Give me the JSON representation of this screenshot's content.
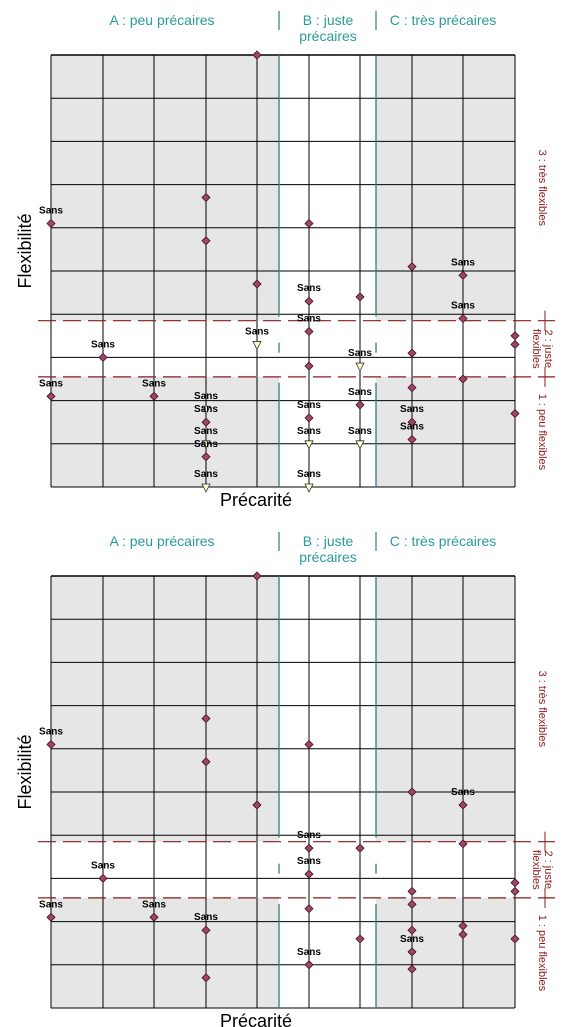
{
  "chart_data": [
    {
      "type": "scatter",
      "title": "",
      "xlabel": "Précarité",
      "ylabel": "Flexibilité",
      "x_zones": [
        "A : peu précaires",
        "B : juste\nprécaires",
        "C : très précaires"
      ],
      "y_zones": [
        "3 : très flexibles",
        "2 : juste\nflexibles",
        "1 : peu flexibles"
      ],
      "grid": true,
      "points": [
        {
          "x": 0,
          "y": 6.1,
          "label": "Sans",
          "marker": "diamond"
        },
        {
          "x": 1,
          "y": 3.0,
          "label": "Sans",
          "marker": "diamond"
        },
        {
          "x": 0,
          "y": 2.1,
          "label": "Sans",
          "marker": "diamond"
        },
        {
          "x": 2,
          "y": 2.1,
          "label": "Sans",
          "marker": "diamond"
        },
        {
          "x": 3,
          "y": 6.7,
          "label": "",
          "marker": "diamond"
        },
        {
          "x": 3,
          "y": 5.7,
          "label": "",
          "marker": "diamond"
        },
        {
          "x": 3,
          "y": 1.8,
          "label": "Sans",
          "marker": "triangle"
        },
        {
          "x": 3,
          "y": 1.5,
          "label": "Sans",
          "marker": "diamond"
        },
        {
          "x": 3,
          "y": 1.0,
          "label": "Sans",
          "marker": "triangle"
        },
        {
          "x": 3,
          "y": 0.7,
          "label": "Sans",
          "marker": "diamond"
        },
        {
          "x": 3,
          "y": 0.0,
          "label": "Sans",
          "marker": "triangle"
        },
        {
          "x": 4,
          "y": 10.0,
          "label": "",
          "marker": "diamond"
        },
        {
          "x": 4,
          "y": 4.7,
          "label": "",
          "marker": "diamond"
        },
        {
          "x": 4,
          "y": 3.3,
          "label": "Sans",
          "marker": "triangle"
        },
        {
          "x": 5,
          "y": 6.1,
          "label": "",
          "marker": "diamond"
        },
        {
          "x": 5,
          "y": 4.3,
          "label": "Sans",
          "marker": "diamond"
        },
        {
          "x": 5,
          "y": 3.6,
          "label": "Sans",
          "marker": "diamond"
        },
        {
          "x": 5,
          "y": 2.8,
          "label": "",
          "marker": "diamond"
        },
        {
          "x": 5,
          "y": 1.6,
          "label": "Sans",
          "marker": "diamond"
        },
        {
          "x": 5,
          "y": 1.0,
          "label": "Sans",
          "marker": "triangle"
        },
        {
          "x": 5,
          "y": 0.0,
          "label": "Sans",
          "marker": "triangle"
        },
        {
          "x": 6,
          "y": 4.4,
          "label": "",
          "marker": "diamond"
        },
        {
          "x": 6,
          "y": 2.8,
          "label": "Sans",
          "marker": "triangle"
        },
        {
          "x": 6,
          "y": 1.9,
          "label": "Sans",
          "marker": "diamond"
        },
        {
          "x": 6,
          "y": 1.0,
          "label": "Sans",
          "marker": "triangle"
        },
        {
          "x": 7,
          "y": 5.1,
          "label": "",
          "marker": "diamond"
        },
        {
          "x": 7,
          "y": 3.1,
          "label": "",
          "marker": "diamond"
        },
        {
          "x": 7,
          "y": 2.3,
          "label": "",
          "marker": "diamond"
        },
        {
          "x": 7,
          "y": 1.5,
          "label": "Sans",
          "marker": "diamond"
        },
        {
          "x": 7,
          "y": 1.1,
          "label": "Sans",
          "marker": "diamond"
        },
        {
          "x": 8,
          "y": 4.9,
          "label": "Sans",
          "marker": "diamond"
        },
        {
          "x": 8,
          "y": 3.9,
          "label": "Sans",
          "marker": "diamond"
        },
        {
          "x": 8,
          "y": 2.5,
          "label": "",
          "marker": "diamond"
        },
        {
          "x": 9,
          "y": 3.5,
          "label": "",
          "marker": "diamond"
        },
        {
          "x": 9,
          "y": 3.3,
          "label": "",
          "marker": "diamond"
        },
        {
          "x": 9,
          "y": 1.7,
          "label": "",
          "marker": "diamond"
        }
      ]
    },
    {
      "type": "scatter",
      "title": "",
      "xlabel": "Précarité",
      "ylabel": "Flexibilité",
      "x_zones": [
        "A : peu précaires",
        "B : juste\nprécaires",
        "C : très précaires"
      ],
      "y_zones": [
        "3 : très flexibles",
        "2 : juste\nflexibles",
        "1 : peu flexibles"
      ],
      "grid": true,
      "points": [
        {
          "x": 0,
          "y": 6.1,
          "label": "Sans",
          "marker": "diamond"
        },
        {
          "x": 1,
          "y": 3.0,
          "label": "Sans",
          "marker": "diamond"
        },
        {
          "x": 0,
          "y": 2.1,
          "label": "Sans",
          "marker": "diamond"
        },
        {
          "x": 2,
          "y": 2.1,
          "label": "Sans",
          "marker": "diamond"
        },
        {
          "x": 3,
          "y": 6.7,
          "label": "",
          "marker": "diamond"
        },
        {
          "x": 3,
          "y": 5.7,
          "label": "",
          "marker": "diamond"
        },
        {
          "x": 3,
          "y": 1.8,
          "label": "Sans",
          "marker": "diamond"
        },
        {
          "x": 3,
          "y": 0.7,
          "label": "",
          "marker": "diamond"
        },
        {
          "x": 4,
          "y": 10.0,
          "label": "",
          "marker": "diamond"
        },
        {
          "x": 4,
          "y": 4.7,
          "label": "",
          "marker": "diamond"
        },
        {
          "x": 5,
          "y": 6.1,
          "label": "",
          "marker": "diamond"
        },
        {
          "x": 5,
          "y": 3.7,
          "label": "Sans",
          "marker": "diamond"
        },
        {
          "x": 5,
          "y": 3.1,
          "label": "Sans",
          "marker": "diamond"
        },
        {
          "x": 5,
          "y": 2.3,
          "label": "",
          "marker": "diamond"
        },
        {
          "x": 5,
          "y": 1.0,
          "label": "Sans",
          "marker": "diamond"
        },
        {
          "x": 6,
          "y": 3.7,
          "label": "",
          "marker": "diamond"
        },
        {
          "x": 6,
          "y": 1.6,
          "label": "",
          "marker": "diamond"
        },
        {
          "x": 7,
          "y": 5.0,
          "label": "",
          "marker": "diamond"
        },
        {
          "x": 7,
          "y": 2.7,
          "label": "",
          "marker": "diamond"
        },
        {
          "x": 7,
          "y": 2.4,
          "label": "",
          "marker": "diamond"
        },
        {
          "x": 7,
          "y": 1.8,
          "label": "",
          "marker": "diamond"
        },
        {
          "x": 7,
          "y": 1.3,
          "label": "Sans",
          "marker": "diamond"
        },
        {
          "x": 7,
          "y": 0.9,
          "label": "",
          "marker": "diamond"
        },
        {
          "x": 8,
          "y": 4.7,
          "label": "Sans",
          "marker": "diamond"
        },
        {
          "x": 8,
          "y": 3.8,
          "label": "",
          "marker": "diamond"
        },
        {
          "x": 8,
          "y": 1.9,
          "label": "",
          "marker": "diamond"
        },
        {
          "x": 8,
          "y": 1.7,
          "label": "",
          "marker": "diamond"
        },
        {
          "x": 9,
          "y": 2.9,
          "label": "",
          "marker": "diamond"
        },
        {
          "x": 9,
          "y": 2.7,
          "label": "",
          "marker": "diamond"
        },
        {
          "x": 9,
          "y": 1.6,
          "label": "",
          "marker": "diamond"
        }
      ]
    }
  ],
  "colors": {
    "zone_text": "#2a9a9a",
    "zone_label_y": "#8b1a1a",
    "marker_fill": "#a0446a",
    "triangle_fill": "#fffccd",
    "shade": "#e6e6e6"
  }
}
